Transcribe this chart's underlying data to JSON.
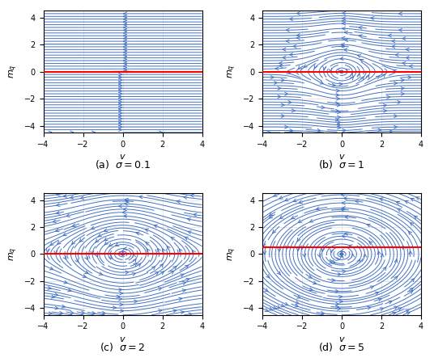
{
  "sigma_values": [
    0.1,
    1,
    2,
    5
  ],
  "subtitles": [
    "(a)  $\\sigma = 0.1$",
    "(b)  $\\sigma = 1$",
    "(c)  $\\sigma = 2$",
    "(d)  $\\sigma = 5$"
  ],
  "xlim": [
    -4,
    4
  ],
  "ylim": [
    -4.5,
    4.5
  ],
  "xlabel": "$v$",
  "ylabel": "$m_q$",
  "stream_color": "#4472C4",
  "red_line_color": "red",
  "grid": true,
  "figsize": [
    5.36,
    4.48
  ],
  "dpi": 100,
  "red_line_y": [
    0,
    0,
    0,
    0.5
  ],
  "has_red_line": [
    true,
    true,
    true,
    true
  ]
}
